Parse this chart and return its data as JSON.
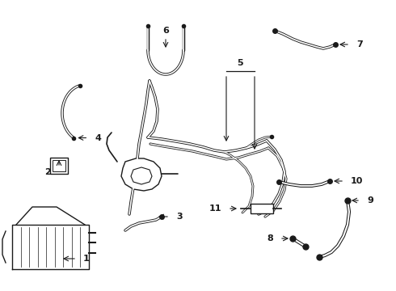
{
  "bg_color": "#ffffff",
  "line_color": "#1a1a1a",
  "fig_width": 4.9,
  "fig_height": 3.6,
  "dpi": 100,
  "lw_tube": 2.2,
  "lw_inner": 1.0,
  "lw_thin": 1.0
}
